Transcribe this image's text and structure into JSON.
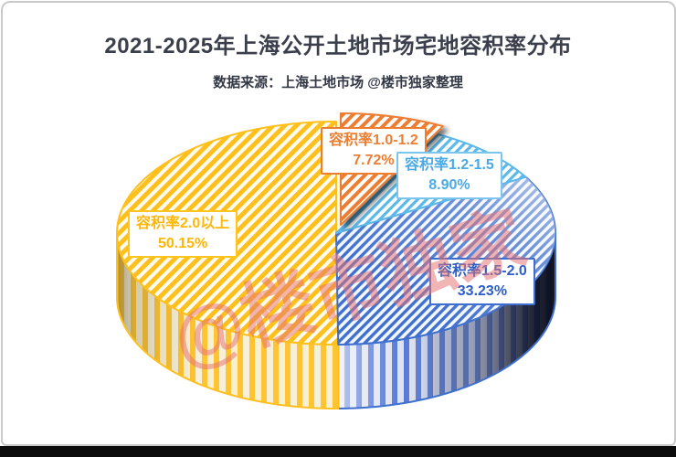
{
  "header": {
    "title": "2021-2025年上海公开土地市场宅地容积率分布",
    "subtitle": "数据来源：上海土地市场 @楼市独家整理"
  },
  "watermark": {
    "text": "@楼市独家"
  },
  "chart_data": {
    "type": "pie",
    "style": "3d-exploded-hatched",
    "title": "2021-2025年上海公开土地市场宅地容积率分布",
    "source_note": "数据来源：上海土地市场 @楼市独家整理",
    "start_angle_deg": 0,
    "direction": "clockwise",
    "legend_position": "labels-on-slices",
    "slices": [
      {
        "key": "orange",
        "label": "容积率1.0-1.2",
        "value_pct": 7.72,
        "value_label": "7.72%",
        "color": "#ED7D31",
        "exploded": true
      },
      {
        "key": "lightblue",
        "label": "容积率1.2-1.5",
        "value_pct": 8.9,
        "value_label": "8.90%",
        "color": "#5BB8EA",
        "exploded": false
      },
      {
        "key": "blue",
        "label": "容积率1.5-2.0",
        "value_pct": 33.23,
        "value_label": "33.23%",
        "color": "#4070CE",
        "exploded": false
      },
      {
        "key": "yellow",
        "label": "容积率2.0以上",
        "value_pct": 50.15,
        "value_label": "50.15%",
        "color": "#FFC01E",
        "exploded": false
      }
    ]
  }
}
